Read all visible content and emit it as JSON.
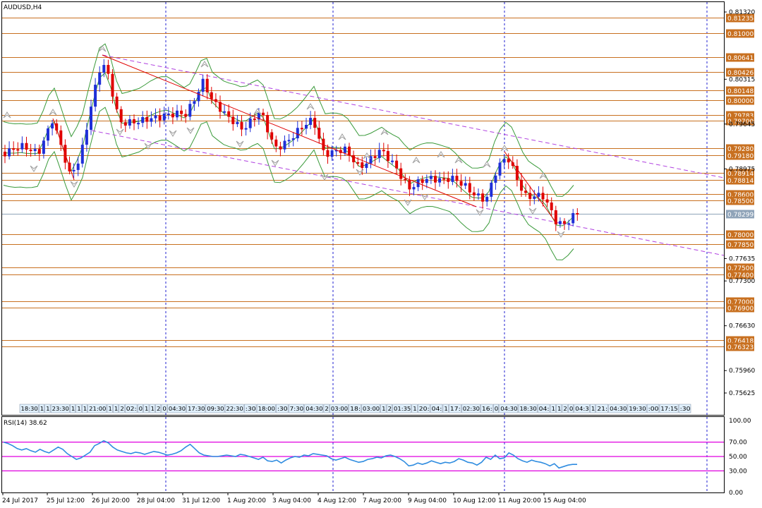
{
  "window": {
    "symbol_title": "AUDUSD,H4",
    "rsi_title": "RSI(14) 38.62"
  },
  "colors": {
    "background": "#ffffff",
    "bull_candle": "#1f2fd8",
    "bear_candle": "#e00000",
    "level_line": "#c87020",
    "level_label_bg": "#c87020",
    "current_price_line": "#8fa3b8",
    "current_price_label_bg": "#8fa3b8",
    "channel_line": "#b040e0",
    "trend_line": "#e00000",
    "bands": "#3a9a3a",
    "rsi_line": "#2f8ce0",
    "rsi_levels": "#e000e0",
    "vertical_grid": "#2020d0",
    "fractal": "#a0a0a0"
  },
  "price_axis": {
    "labels": [
      "0.81320",
      "0.80315",
      "0.79645",
      "0.78975",
      "0.77635",
      "0.77300",
      "0.76630",
      "0.75960",
      "0.75625"
    ],
    "min": 0.7548,
    "max": 0.8132
  },
  "levels": [
    {
      "price": 0.81235,
      "label": "0.81235"
    },
    {
      "price": 0.81,
      "label": "0.81000"
    },
    {
      "price": 0.80641,
      "label": "0.80641"
    },
    {
      "price": 0.80426,
      "label": "0.80426"
    },
    {
      "price": 0.80148,
      "label": "0.80148"
    },
    {
      "price": 0.8,
      "label": "0.80000"
    },
    {
      "price": 0.79783,
      "label": "0.79783"
    },
    {
      "price": 0.797,
      "label": "0.79700"
    },
    {
      "price": 0.7928,
      "label": "0.79280"
    },
    {
      "price": 0.7918,
      "label": "0.79180"
    },
    {
      "price": 0.78914,
      "label": "0.78914"
    },
    {
      "price": 0.78814,
      "label": "0.78814"
    },
    {
      "price": 0.786,
      "label": "0.78600"
    },
    {
      "price": 0.785,
      "label": "0.78500"
    },
    {
      "price": 0.78,
      "label": "0.78000"
    },
    {
      "price": 0.7785,
      "label": "0.77850"
    },
    {
      "price": 0.775,
      "label": "0.77500"
    },
    {
      "price": 0.774,
      "label": "0.77400"
    },
    {
      "price": 0.77,
      "label": "0.77000"
    },
    {
      "price": 0.769,
      "label": "0.76900"
    },
    {
      "price": 0.76418,
      "label": "0.76418"
    },
    {
      "price": 0.76323,
      "label": "0.76323"
    }
  ],
  "current_price": {
    "price": 0.78299,
    "label": "0.78299"
  },
  "rsi_axis": {
    "labels": [
      "100.00",
      "70.00",
      "50.00",
      "30.00",
      "0.00"
    ],
    "levels": [
      70,
      50,
      30
    ]
  },
  "time_axis": {
    "labels": [
      "24 Jul 2017",
      "25 Jul 12:00",
      "26 Jul 20:00",
      "28 Jul 04:00",
      "31 Jul 12:00",
      "1 Aug 20:00",
      "3 Aug 04:00",
      "4 Aug 12:00",
      "7 Aug 20:00",
      "9 Aug 04:00",
      "10 Aug 12:00",
      "11 Aug 20:00",
      "15 Aug 04:00"
    ]
  },
  "session_labels": [
    "18:30",
    "1",
    "1",
    "23:30",
    "1",
    "1",
    "1",
    "21:00",
    "1",
    "1",
    "2",
    "02:",
    "0",
    "1",
    "1",
    "2",
    "0",
    "04:30",
    "17:30",
    "09:30",
    "22:30",
    ":30",
    "18:00",
    ":30",
    "7:30",
    "04:30",
    "2",
    "03:00",
    "18:",
    "03:00",
    "1",
    "2",
    "01:35",
    "1",
    "20:",
    "04:",
    "1",
    "17:",
    "02:30",
    "16:",
    "0",
    "04:30",
    "18:30",
    "04:",
    "1",
    "1",
    "2",
    "0",
    "04:3",
    "1",
    "21:",
    "04:30",
    "19:30",
    ":00",
    "17:15",
    ":30"
  ],
  "rsi_values": [
    70,
    68,
    65,
    61,
    59,
    61,
    58,
    56,
    60,
    57,
    55,
    59,
    63,
    60,
    54,
    50,
    46,
    48,
    52,
    56,
    65,
    68,
    72,
    69,
    63,
    59,
    57,
    55,
    54,
    56,
    55,
    53,
    55,
    57,
    56,
    54,
    52,
    53,
    55,
    58,
    63,
    67,
    61,
    55,
    52,
    51,
    50,
    50,
    51,
    52,
    51,
    50,
    53,
    52,
    50,
    48,
    46,
    49,
    44,
    43,
    45,
    41,
    45,
    48,
    50,
    49,
    52,
    51,
    54,
    53,
    52,
    51,
    47,
    45,
    47,
    49,
    46,
    44,
    42,
    43,
    46,
    47,
    49,
    48,
    51,
    52,
    50,
    47,
    43,
    37,
    38,
    41,
    39,
    41,
    44,
    42,
    40,
    42,
    41,
    43,
    47,
    45,
    42,
    41,
    38,
    42,
    49,
    46,
    52,
    47,
    48,
    55,
    52,
    47,
    44,
    42,
    45,
    43,
    42,
    40,
    37,
    40,
    34,
    36,
    38,
    39,
    39
  ]
}
